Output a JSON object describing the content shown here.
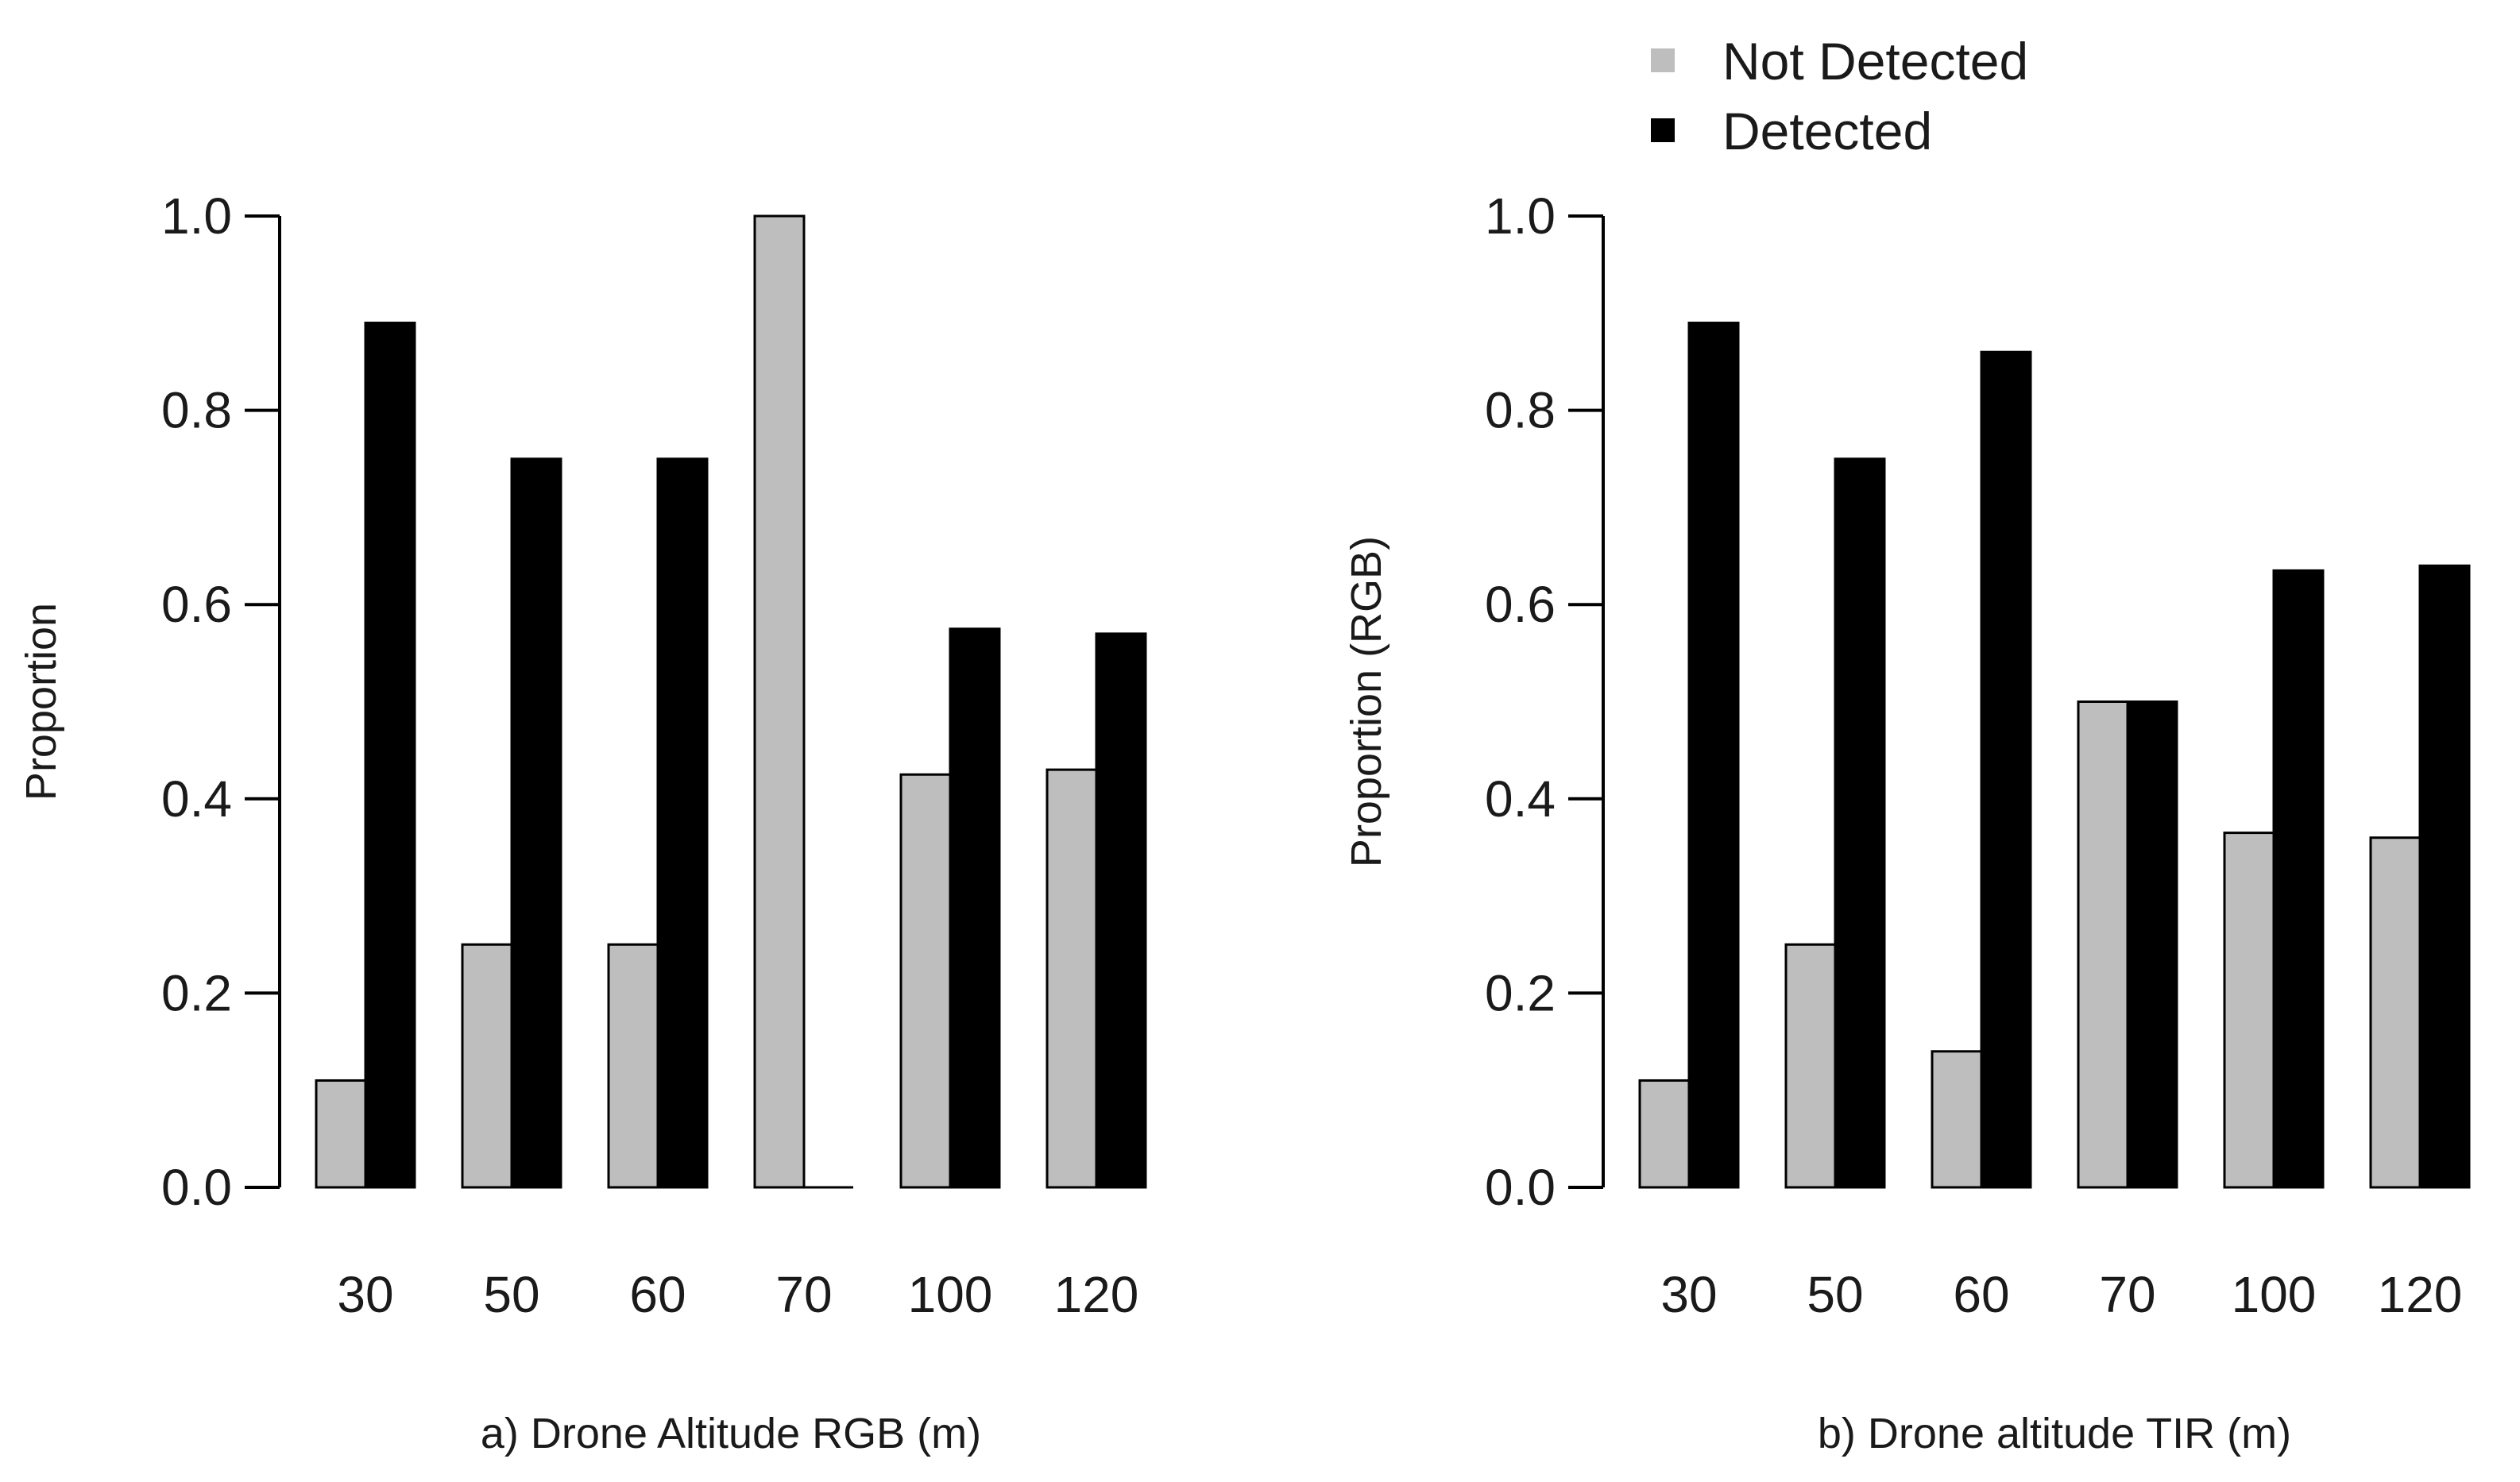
{
  "colors": {
    "not_detected": "#bebebe",
    "detected": "#000000"
  },
  "legend": {
    "position": "top-right",
    "items": [
      {
        "label": "Not Detected",
        "color": "#bebebe"
      },
      {
        "label": "Detected",
        "color": "#000000"
      }
    ]
  },
  "chart_data": [
    {
      "type": "bar",
      "categories": [
        "30",
        "50",
        "60",
        "70",
        "100",
        "120"
      ],
      "series": [
        {
          "name": "Not Detected",
          "values": [
            0.11,
            0.25,
            0.25,
            1.0,
            0.425,
            0.43
          ]
        },
        {
          "name": "Detected",
          "values": [
            0.89,
            0.75,
            0.75,
            0.0,
            0.575,
            0.57
          ]
        }
      ],
      "xlabel": "a) Drone Altitude RGB (m)",
      "ylabel": "Proportion",
      "ylim": [
        0,
        1
      ],
      "yticks": [
        "0.0",
        "0.2",
        "0.4",
        "0.6",
        "0.8",
        "1.0"
      ],
      "grid": false
    },
    {
      "type": "bar",
      "categories": [
        "30",
        "50",
        "60",
        "70",
        "100",
        "120"
      ],
      "series": [
        {
          "name": "Not Detected",
          "values": [
            0.11,
            0.25,
            0.14,
            0.5,
            0.365,
            0.36
          ]
        },
        {
          "name": "Detected",
          "values": [
            0.89,
            0.75,
            0.86,
            0.5,
            0.635,
            0.64
          ]
        }
      ],
      "xlabel": "b) Drone altitude TIR (m)",
      "ylabel": "Proportion (RGB)",
      "ylim": [
        0,
        1
      ],
      "yticks": [
        "0.0",
        "0.2",
        "0.4",
        "0.6",
        "0.8",
        "1.0"
      ],
      "grid": false
    }
  ]
}
